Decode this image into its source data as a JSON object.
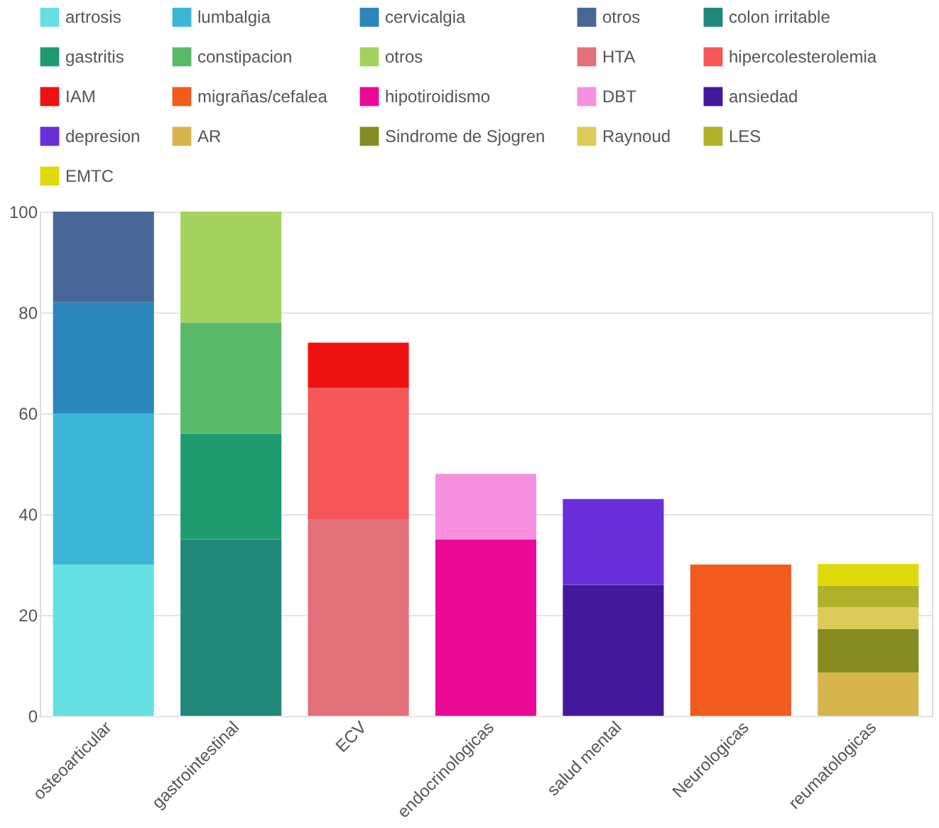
{
  "chart_data": {
    "type": "bar",
    "stacked": true,
    "categories": [
      "osteoarticular",
      "gastrointestinal",
      "ECV",
      "endocrinologicas",
      "salud mental",
      "Neurologicas",
      "reumatologicas"
    ],
    "series": [
      {
        "name": "artrosis",
        "color": "#66dfe3",
        "values": [
          30,
          null,
          null,
          null,
          null,
          null,
          null
        ]
      },
      {
        "name": "lumbalgia",
        "color": "#3db6d6",
        "values": [
          30,
          null,
          null,
          null,
          null,
          null,
          null
        ]
      },
      {
        "name": "cervicalgia",
        "color": "#2b86bb",
        "values": [
          22,
          null,
          null,
          null,
          null,
          null,
          null
        ]
      },
      {
        "name": "otros",
        "color": "#496796",
        "values": [
          18,
          null,
          null,
          null,
          null,
          null,
          null
        ]
      },
      {
        "name": "colon irritable",
        "color": "#218879",
        "values": [
          null,
          35,
          null,
          null,
          null,
          null,
          null
        ]
      },
      {
        "name": "gastritis",
        "color": "#1e9b6e",
        "values": [
          null,
          21,
          null,
          null,
          null,
          null,
          null
        ]
      },
      {
        "name": "constipacion",
        "color": "#59b96b",
        "values": [
          null,
          22,
          null,
          null,
          null,
          null,
          null
        ]
      },
      {
        "name": "otros",
        "color": "#a3d35e",
        "values": [
          null,
          22,
          null,
          null,
          null,
          null,
          null
        ]
      },
      {
        "name": "HTA",
        "color": "#e2717a",
        "values": [
          null,
          null,
          39,
          null,
          null,
          null,
          null
        ]
      },
      {
        "name": "hipercolesterolemia",
        "color": "#f55658",
        "values": [
          null,
          null,
          26,
          null,
          null,
          null,
          null
        ]
      },
      {
        "name": "IAM",
        "color": "#ee1111",
        "values": [
          null,
          null,
          9,
          null,
          null,
          null,
          null
        ]
      },
      {
        "name": "migrañas/cefalea",
        "color": "#f25a1e",
        "values": [
          null,
          null,
          null,
          null,
          null,
          30,
          null
        ]
      },
      {
        "name": "hipotiroidismo",
        "color": "#ea0a96",
        "values": [
          null,
          null,
          null,
          35,
          null,
          null,
          null
        ]
      },
      {
        "name": "DBT",
        "color": "#f890e0",
        "values": [
          null,
          null,
          null,
          13,
          null,
          null,
          null
        ]
      },
      {
        "name": "ansiedad",
        "color": "#43199b",
        "values": [
          null,
          null,
          null,
          null,
          26,
          null,
          null
        ]
      },
      {
        "name": "depresion",
        "color": "#682ed8",
        "values": [
          null,
          null,
          null,
          null,
          17,
          null,
          null
        ]
      },
      {
        "name": "AR",
        "color": "#d6b64c",
        "values": [
          null,
          null,
          null,
          null,
          null,
          null,
          8.6
        ]
      },
      {
        "name": "Sindrome de Sjogren",
        "color": "#868c22",
        "values": [
          null,
          null,
          null,
          null,
          null,
          null,
          8.6
        ]
      },
      {
        "name": "Raynoud",
        "color": "#dccb58",
        "values": [
          null,
          null,
          null,
          null,
          null,
          null,
          4.3
        ]
      },
      {
        "name": "LES",
        "color": "#b0b12a",
        "values": [
          null,
          null,
          null,
          null,
          null,
          null,
          4.3
        ]
      },
      {
        "name": "EMTC",
        "color": "#e0d90a",
        "values": [
          null,
          null,
          null,
          null,
          null,
          null,
          4.3
        ]
      }
    ],
    "ylim": [
      0,
      100
    ],
    "yticks": [
      0,
      20,
      40,
      60,
      80,
      100
    ],
    "grid": "y",
    "legend": "top"
  }
}
